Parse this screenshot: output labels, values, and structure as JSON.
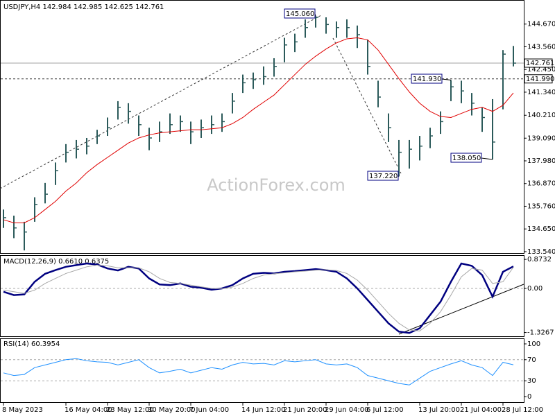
{
  "watermark": "ActionForex.com",
  "chart_data": [
    {
      "type": "ohlc",
      "title": "USDJPY,H4 142.984 142.985 142.625 142.761",
      "color": "#2b5a5a",
      "categories": [
        "8 May 2023",
        null,
        null,
        null,
        null,
        null,
        "16 May 04:00",
        null,
        null,
        null,
        "23 May 12:00",
        null,
        null,
        null,
        "30 May 20:00",
        null,
        null,
        null,
        "7 Jun 04:00",
        null,
        null,
        null,
        null,
        "14 Jun 12:00",
        null,
        null,
        null,
        "21 Jun 20:00",
        null,
        null,
        null,
        "29 Jun 04:00",
        null,
        null,
        null,
        "6 Jul 12:00",
        null,
        null,
        null,
        null,
        "13 Jul 20:00",
        null,
        null,
        null,
        "21 Jul 04:00",
        null,
        null,
        null,
        "28 Jul 12:00",
        null
      ],
      "high": [
        135.6,
        135.3,
        135.0,
        136.2,
        136.9,
        137.9,
        138.8,
        139.0,
        139.1,
        139.5,
        140.1,
        140.9,
        140.8,
        140.2,
        139.6,
        139.9,
        140.3,
        140.2,
        139.9,
        140.0,
        140.2,
        140.3,
        141.3,
        142.2,
        142.3,
        142.6,
        143.0,
        144.0,
        144.2,
        144.9,
        145.06,
        145.0,
        144.8,
        144.9,
        144.6,
        143.9,
        141.9,
        140.3,
        139.0,
        139.0,
        139.2,
        139.6,
        140.4,
        141.93,
        141.9,
        141.3,
        140.6,
        141.0,
        143.4,
        143.6
      ],
      "low": [
        134.7,
        134.2,
        133.6,
        135.0,
        135.9,
        136.8,
        137.9,
        138.1,
        138.3,
        138.8,
        139.2,
        140.0,
        139.8,
        139.2,
        138.5,
        138.9,
        139.3,
        139.4,
        138.8,
        139.1,
        139.3,
        139.4,
        140.3,
        141.3,
        141.5,
        141.7,
        142.1,
        142.8,
        143.3,
        144.0,
        144.5,
        144.2,
        144.0,
        144.0,
        143.5,
        142.2,
        140.6,
        138.9,
        137.22,
        137.6,
        138.0,
        138.6,
        139.3,
        140.9,
        140.8,
        140.2,
        139.4,
        138.05,
        140.5,
        142.6
      ],
      "close": [
        135.2,
        134.7,
        134.5,
        135.85,
        136.35,
        137.5,
        138.4,
        138.55,
        138.7,
        139.2,
        139.6,
        140.6,
        140.4,
        139.75,
        139.1,
        139.4,
        139.75,
        139.9,
        139.4,
        139.6,
        139.75,
        139.9,
        140.9,
        141.8,
        141.95,
        142.1,
        142.6,
        143.65,
        143.8,
        144.5,
        145.0,
        144.65,
        144.5,
        144.5,
        144.15,
        142.6,
        141.1,
        139.6,
        138.4,
        138.55,
        138.7,
        139.2,
        139.9,
        141.6,
        141.4,
        140.8,
        140.1,
        138.9,
        143.2,
        142.761
      ],
      "series": [
        {
          "color": "#e00000",
          "values": [
            135.1,
            134.95,
            134.95,
            135.2,
            135.6,
            136.0,
            136.5,
            136.9,
            137.4,
            137.8,
            138.15,
            138.5,
            138.85,
            139.1,
            139.25,
            139.35,
            139.4,
            139.45,
            139.5,
            139.5,
            139.55,
            139.6,
            139.8,
            140.1,
            140.5,
            140.85,
            141.2,
            141.7,
            142.2,
            142.7,
            143.1,
            143.45,
            143.75,
            143.95,
            144.0,
            143.9,
            143.4,
            142.7,
            142.0,
            141.35,
            140.8,
            140.4,
            140.15,
            140.1,
            140.3,
            140.5,
            140.6,
            140.4,
            140.7,
            141.3
          ]
        }
      ],
      "ylim": [
        133.47,
        145.78
      ],
      "yticks": [
        {
          "value": 144.67,
          "label": "144.670"
        },
        {
          "value": 143.56,
          "label": "143.560"
        },
        {
          "value": 142.45,
          "label": "142.450"
        },
        {
          "value": 141.34,
          "label": "141.340"
        },
        {
          "value": 140.21,
          "label": "140.210"
        },
        {
          "value": 139.09,
          "label": "139.090"
        },
        {
          "value": 137.98,
          "label": "137.980"
        },
        {
          "value": 136.87,
          "label": "136.870"
        },
        {
          "value": 135.76,
          "label": "135.760"
        },
        {
          "value": 134.65,
          "label": "134.650"
        },
        {
          "value": 133.54,
          "label": "133.540"
        }
      ],
      "levels": [
        {
          "value": 142.761,
          "label": "142.761"
        },
        {
          "value": 141.99,
          "label": "141.990"
        }
      ],
      "point_labels": [
        {
          "value": 145.06,
          "label": "145.060"
        },
        {
          "value": 141.93,
          "label": "141.930"
        },
        {
          "value": 137.22,
          "label": "137.220"
        },
        {
          "value": 138.05,
          "label": "138.050"
        }
      ]
    },
    {
      "type": "line",
      "title": "MACD(12,26,9) 0.6610 0.6375",
      "series": [
        {
          "color": "#000080",
          "values": [
            -0.1,
            -0.2,
            -0.18,
            0.2,
            0.44,
            0.55,
            0.65,
            0.7,
            0.75,
            0.72,
            0.6,
            0.54,
            0.65,
            0.6,
            0.3,
            0.12,
            0.1,
            0.15,
            0.05,
            0.02,
            -0.04,
            0.0,
            0.1,
            0.3,
            0.44,
            0.47,
            0.45,
            0.5,
            0.52,
            0.55,
            0.58,
            0.55,
            0.5,
            0.3,
            0.0,
            -0.35,
            -0.7,
            -1.05,
            -1.3,
            -1.34,
            -1.2,
            -0.8,
            -0.4,
            0.2,
            0.75,
            0.68,
            0.4,
            -0.25,
            0.5,
            0.661
          ]
        },
        {
          "color": "#a8a8a8",
          "values": [
            -0.05,
            -0.1,
            -0.15,
            -0.05,
            0.15,
            0.3,
            0.45,
            0.55,
            0.65,
            0.7,
            0.68,
            0.62,
            0.62,
            0.62,
            0.5,
            0.3,
            0.18,
            0.15,
            0.1,
            0.05,
            0.0,
            -0.01,
            0.04,
            0.15,
            0.3,
            0.4,
            0.44,
            0.47,
            0.5,
            0.52,
            0.55,
            0.56,
            0.54,
            0.45,
            0.25,
            -0.05,
            -0.4,
            -0.75,
            -1.05,
            -1.25,
            -1.28,
            -1.05,
            -0.7,
            -0.2,
            0.35,
            0.6,
            0.55,
            0.15,
            0.2,
            0.6375
          ]
        }
      ],
      "ylim": [
        -1.44,
        0.98
      ],
      "yticks": [
        0.8732,
        {
          "value": 0,
          "label": "0.00"
        },
        -1.3267
      ],
      "levels": [
        0
      ]
    },
    {
      "type": "line",
      "title": "RSI(14) 60.3954",
      "series": [
        {
          "color": "#1e90ff",
          "values": [
            45,
            40,
            42,
            55,
            60,
            65,
            70,
            72,
            68,
            66,
            65,
            60,
            65,
            70,
            55,
            45,
            48,
            52,
            45,
            50,
            55,
            52,
            60,
            65,
            62,
            63,
            60,
            68,
            66,
            68,
            70,
            62,
            60,
            62,
            55,
            40,
            35,
            30,
            25,
            22,
            35,
            48,
            55,
            62,
            68,
            60,
            55,
            40,
            65,
            60.3954
          ]
        }
      ],
      "ylim": [
        -10.5,
        110.5
      ],
      "yticks": [
        100,
        70,
        30,
        0
      ],
      "levels": [
        70,
        30
      ]
    }
  ]
}
